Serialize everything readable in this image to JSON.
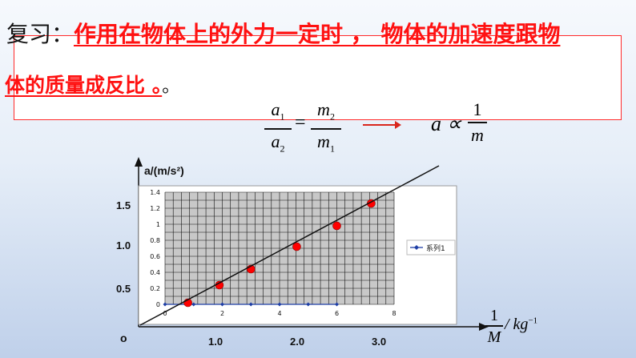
{
  "review": {
    "lead": "复习：",
    "text1": "作用在物体上的外力一定时 ， 物体的加速度跟物",
    "text2": "体的质量成反比 。",
    "tail": "。"
  },
  "formula": {
    "a1": "a",
    "a1_sub": "1",
    "a2": "a",
    "a2_sub": "2",
    "equals": "=",
    "m2": "m",
    "m2_sub": "2",
    "m1": "m",
    "m1_sub": "1",
    "proportional_lhs": "a ∝",
    "prop_num": "1",
    "prop_den": "m"
  },
  "graph": {
    "y_axis_label": "a/(m/s²)",
    "y_ticks": [
      "1.5",
      "1.0",
      "0.5"
    ],
    "x_ticks": [
      "1.0",
      "2.0",
      "3.0"
    ],
    "origin": "o",
    "x_axis_label_num": "1",
    "x_axis_label_den": "M",
    "x_axis_unit": "/ kg",
    "x_axis_unit_exp": "−1"
  },
  "chart_data": {
    "type": "scatter",
    "y_ticks": [
      "1.4",
      "1.2",
      "1",
      "0.8",
      "0.6",
      "0.4",
      "0.2",
      "0"
    ],
    "x_ticks": [
      "0",
      "2",
      "4",
      "6",
      "8"
    ],
    "xlim": [
      0,
      8
    ],
    "ylim": [
      0,
      1.4
    ],
    "grid": true,
    "legend_label": "系列1",
    "legend_position": "right",
    "series": [
      {
        "name": "系列1",
        "x": [
          0,
          1,
          2,
          3,
          4,
          5,
          6
        ],
        "y": [
          0,
          0,
          0,
          0,
          0,
          0,
          0
        ],
        "color": "#1f3fa6"
      }
    ],
    "points_red": {
      "x": [
        0.8,
        1.9,
        3.0,
        4.6,
        6.0,
        7.2
      ],
      "y": [
        0.02,
        0.24,
        0.44,
        0.72,
        0.98,
        1.26
      ]
    },
    "accent_red": "#ff0000"
  }
}
